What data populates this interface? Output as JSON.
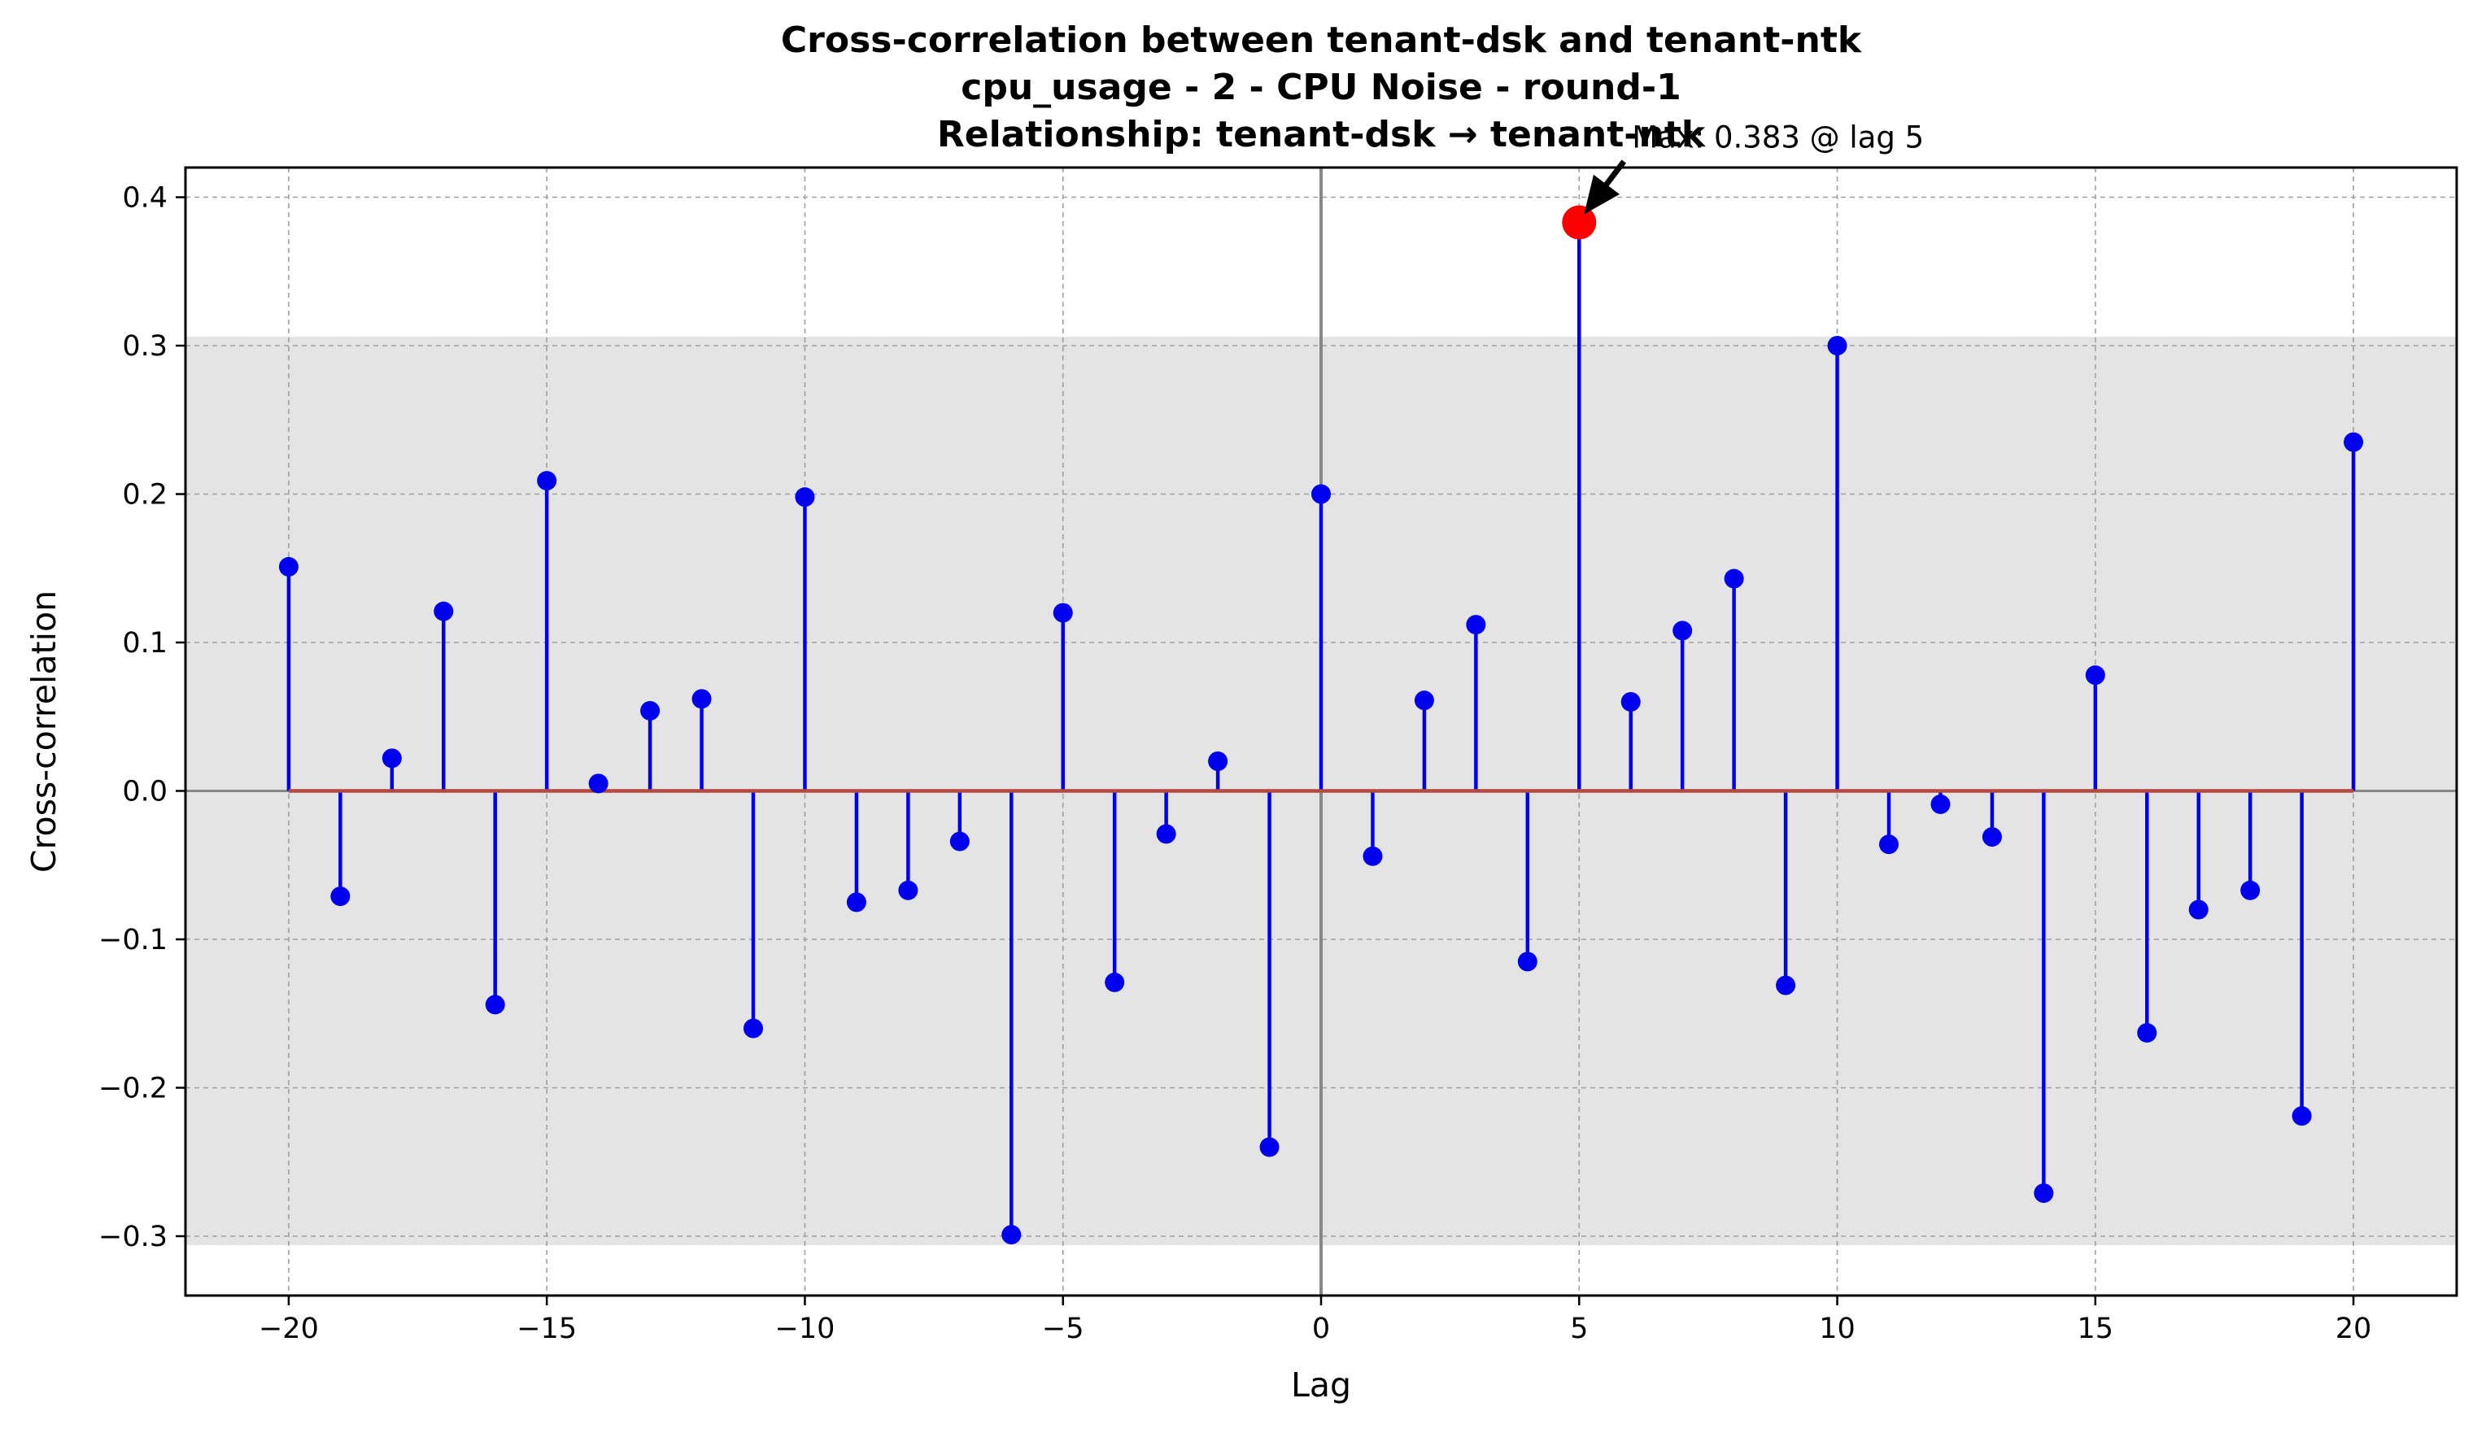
{
  "chart_data": {
    "type": "stem",
    "title_lines": [
      "Cross-correlation between tenant-dsk and tenant-ntk",
      "cpu_usage - 2 - CPU Noise - round-1",
      "Relationship: tenant-dsk → tenant-ntk"
    ],
    "xlabel": "Lag",
    "ylabel": "Cross-correlation",
    "xlim": [
      -22,
      22
    ],
    "ylim": [
      -0.34,
      0.42
    ],
    "xticks": [
      -20,
      -15,
      -10,
      -5,
      0,
      5,
      10,
      15,
      20
    ],
    "xtick_labels": [
      "−20",
      "−15",
      "−10",
      "−5",
      "0",
      "5",
      "10",
      "15",
      "20"
    ],
    "yticks": [
      -0.3,
      -0.2,
      -0.1,
      0.0,
      0.1,
      0.2,
      0.3,
      0.4
    ],
    "ytick_labels": [
      "−0.3",
      "−0.2",
      "−0.1",
      "0.0",
      "0.1",
      "0.2",
      "0.3",
      "0.4"
    ],
    "grid": true,
    "confidence_band": [
      -0.306,
      0.306
    ],
    "lags": [
      -20,
      -19,
      -18,
      -17,
      -16,
      -15,
      -14,
      -13,
      -12,
      -11,
      -10,
      -9,
      -8,
      -7,
      -6,
      -5,
      -4,
      -3,
      -2,
      -1,
      0,
      1,
      2,
      3,
      4,
      5,
      6,
      7,
      8,
      9,
      10,
      11,
      12,
      13,
      14,
      15,
      16,
      17,
      18,
      19,
      20
    ],
    "values": [
      0.151,
      -0.071,
      0.022,
      0.121,
      -0.144,
      0.209,
      0.005,
      0.054,
      0.062,
      -0.16,
      0.198,
      -0.075,
      -0.067,
      -0.034,
      -0.299,
      0.12,
      -0.129,
      -0.029,
      0.02,
      -0.24,
      0.2,
      -0.044,
      0.061,
      0.112,
      -0.115,
      0.383,
      0.06,
      0.108,
      0.143,
      -0.131,
      0.3,
      -0.036,
      -0.009,
      -0.031,
      -0.271,
      0.078,
      -0.163,
      -0.08,
      -0.067,
      -0.219,
      0.235
    ],
    "max_point": {
      "lag": 5,
      "value": 0.383
    },
    "annotation": "Max: 0.383 @ lag 5",
    "colors": {
      "stem": "#0000ee",
      "marker": "#0000ee",
      "max_marker": "#ff0000",
      "baseline": "#b5483f",
      "band": "#e4e4e4",
      "grid": "#a0a0a0",
      "zero_axis": "#888888"
    }
  }
}
